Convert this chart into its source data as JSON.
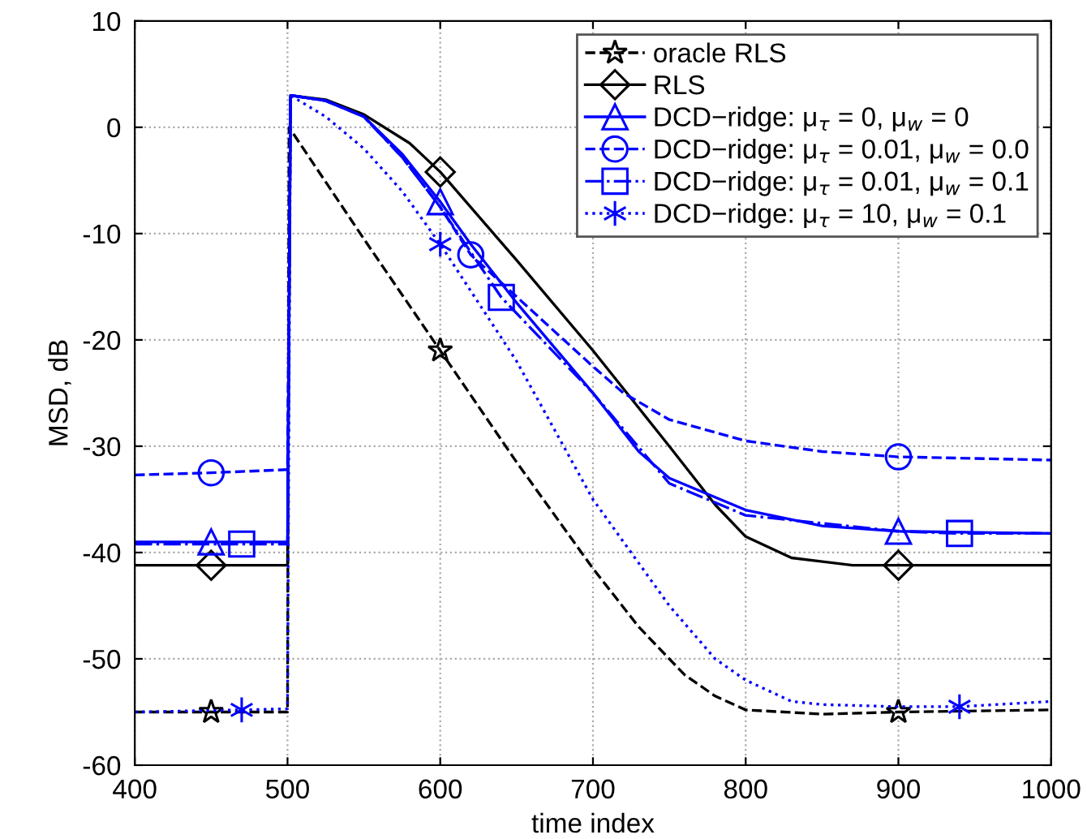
{
  "chart_data": {
    "type": "line",
    "xlabel": "time index",
    "ylabel": "MSD, dB",
    "xlim": [
      400,
      1000
    ],
    "ylim": [
      -60,
      10
    ],
    "xticks": [
      400,
      500,
      600,
      700,
      800,
      900,
      1000
    ],
    "yticks": [
      -60,
      -50,
      -40,
      -30,
      -20,
      -10,
      0,
      10
    ],
    "grid": true,
    "legend": "top right",
    "series": [
      {
        "name": "oracle RLS",
        "color": "#000000",
        "line_style": "dashed",
        "marker": "none",
        "x": [
          400,
          450,
          500,
          501,
          550,
          600,
          650,
          700,
          730,
          760,
          780,
          800,
          850,
          900,
          1000
        ],
        "values": [
          -55,
          -55,
          -55,
          0,
          -10.5,
          -21,
          -31.5,
          -41.5,
          -47,
          -51.5,
          -53.5,
          -54.8,
          -55.2,
          -55,
          -54.8
        ]
      },
      {
        "type": "scatter",
        "color": "#000000",
        "marker": "star",
        "x": [
          450,
          600,
          900
        ],
        "values": [
          -55,
          -21,
          -55
        ]
      },
      {
        "name": "RLS",
        "color": "#000000",
        "line_style": "solid",
        "marker": "none",
        "x": [
          400,
          450,
          500,
          502,
          525,
          550,
          580,
          600,
          650,
          700,
          750,
          780,
          800,
          830,
          870,
          900,
          1000
        ],
        "values": [
          -41.2,
          -41.2,
          -41.2,
          3,
          2.6,
          1.2,
          -1.5,
          -4.2,
          -12.5,
          -21,
          -30,
          -35.5,
          -38.5,
          -40.5,
          -41.2,
          -41.2,
          -41.2
        ]
      },
      {
        "type": "scatter",
        "color": "#000000",
        "marker": "diamond",
        "x": [
          450,
          600,
          900
        ],
        "values": [
          -41.2,
          -4.2,
          -41.2
        ]
      },
      {
        "name": "DCD−ridge: μ$_{τ}$ = 0, μ$_{w}$ = 0",
        "color": "#0000ff",
        "line_style": "solid",
        "marker": "none",
        "x": [
          400,
          450,
          500,
          502,
          525,
          550,
          575,
          600,
          620,
          650,
          700,
          730,
          750,
          800,
          850,
          900,
          1000
        ],
        "values": [
          -39,
          -39,
          -39,
          3,
          2.5,
          1,
          -2.5,
          -7,
          -11,
          -16.5,
          -25,
          -30.5,
          -33,
          -36,
          -37.5,
          -38,
          -38.2
        ]
      },
      {
        "type": "scatter",
        "color": "#0000ff",
        "marker": "triangle",
        "x": [
          450,
          600,
          900
        ],
        "values": [
          -39,
          -7,
          -38
        ]
      },
      {
        "name": "DCD−ridge: μ$_{τ}$ = 0.01, μ$_{w}$ = 0.0",
        "color": "#0000ff",
        "line_style": "dashed",
        "marker": "none",
        "x": [
          400,
          450,
          500,
          502,
          525,
          550,
          575,
          600,
          620,
          700,
          720,
          750,
          800,
          850,
          900,
          1000
        ],
        "values": [
          -32.7,
          -32.5,
          -32.2,
          3,
          2.5,
          1,
          -2.8,
          -7.5,
          -12,
          -22.5,
          -25,
          -27.5,
          -29.5,
          -30.5,
          -31,
          -31.3
        ]
      },
      {
        "type": "scatter",
        "color": "#0000ff",
        "marker": "circle",
        "x": [
          450,
          620,
          900
        ],
        "values": [
          -32.5,
          -12,
          -31
        ]
      },
      {
        "name": "DCD−ridge: μ$_{τ}$ = 0.01, μ$_{w}$ = 0.1",
        "color": "#0000ff",
        "line_style": "dashdot",
        "marker": "none",
        "x": [
          400,
          470,
          500,
          502,
          525,
          550,
          575,
          600,
          640,
          700,
          750,
          800,
          900,
          940,
          1000
        ],
        "values": [
          -39.2,
          -39.2,
          -39.2,
          3,
          2.5,
          1,
          -2.8,
          -7.5,
          -16,
          -25,
          -33.5,
          -36.5,
          -38,
          -38.2,
          -38.2
        ]
      },
      {
        "type": "scatter",
        "color": "#0000ff",
        "marker": "square",
        "x": [
          470,
          640,
          940
        ],
        "values": [
          -39.2,
          -16,
          -38.2
        ]
      },
      {
        "name": "DCD−ridge: μ$_{τ}$ = 10, μ$_{w}$ = 0.1",
        "color": "#0000ff",
        "line_style": "dotted",
        "marker": "none",
        "x": [
          400,
          470,
          500,
          502,
          525,
          550,
          575,
          600,
          650,
          700,
          750,
          780,
          800,
          830,
          850,
          900,
          940,
          1000
        ],
        "values": [
          -55,
          -54.8,
          -54.7,
          3,
          1,
          -2,
          -6,
          -11,
          -22,
          -35,
          -45,
          -50,
          -52,
          -54,
          -54.3,
          -54.5,
          -54.5,
          -54
        ]
      },
      {
        "type": "scatter",
        "color": "#0000ff",
        "marker": "cross",
        "x": [
          470,
          600,
          940
        ],
        "values": [
          -54.8,
          -11,
          -54.5
        ]
      }
    ]
  }
}
